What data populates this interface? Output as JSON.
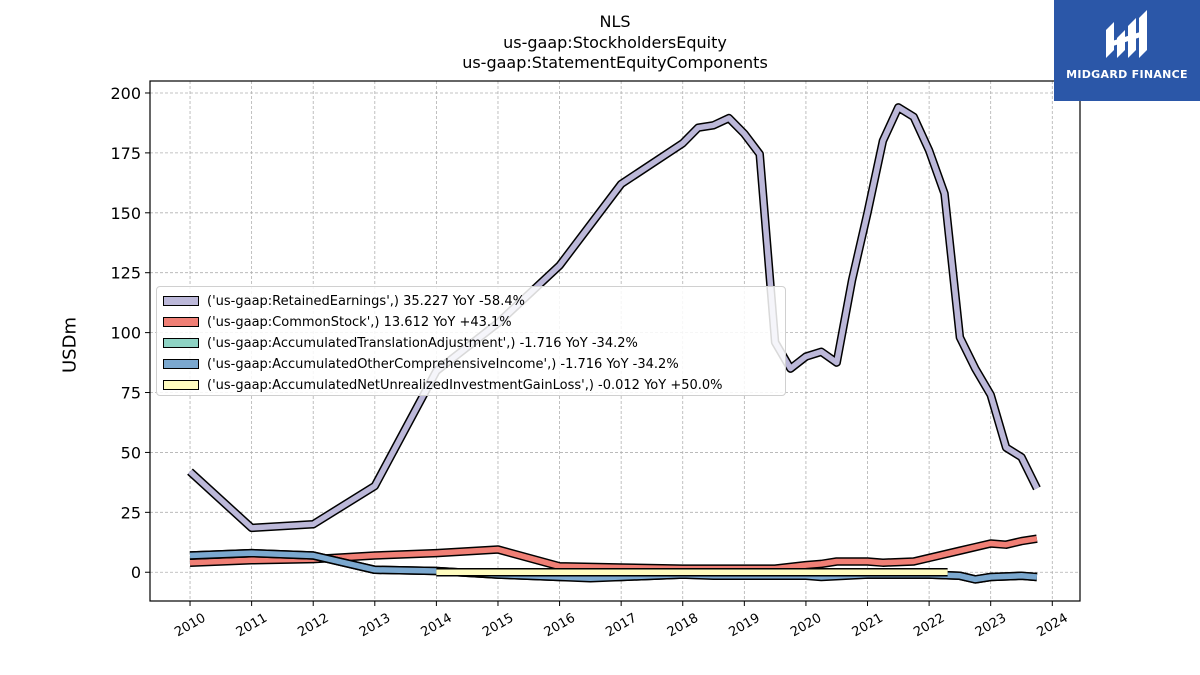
{
  "chart_data": {
    "type": "line",
    "title": [
      "NLS",
      "us-gaap:StockholdersEquity",
      "us-gaap:StatementEquityComponents"
    ],
    "ylabel": "USDm",
    "xlabel": "",
    "xlim": [
      2009.35,
      2024.45
    ],
    "ylim": [
      -12,
      205
    ],
    "yticks": [
      0,
      25,
      50,
      75,
      100,
      125,
      150,
      175,
      200
    ],
    "xticks": [
      2010,
      2011,
      2012,
      2013,
      2014,
      2015,
      2016,
      2017,
      2018,
      2019,
      2020,
      2021,
      2022,
      2023,
      2024
    ],
    "grid": true,
    "legend_position": "center-left",
    "series": [
      {
        "name": "('us-gaap:RetainedEarnings',) 35.227 YoY -58.4%",
        "color": "#bcb8d9",
        "points": [
          [
            2010.0,
            42
          ],
          [
            2011.0,
            18.5
          ],
          [
            2012.0,
            20
          ],
          [
            2013.0,
            36
          ],
          [
            2014.0,
            84
          ],
          [
            2015.0,
            104
          ],
          [
            2016.0,
            128
          ],
          [
            2017.0,
            162
          ],
          [
            2018.0,
            179
          ],
          [
            2018.25,
            185.5
          ],
          [
            2018.5,
            186.5
          ],
          [
            2018.75,
            189.5
          ],
          [
            2019.0,
            183
          ],
          [
            2019.25,
            174.5
          ],
          [
            2019.5,
            96
          ],
          [
            2019.75,
            85
          ],
          [
            2020.0,
            90
          ],
          [
            2020.25,
            92
          ],
          [
            2020.5,
            87.5
          ],
          [
            2020.75,
            122
          ],
          [
            2021.0,
            150
          ],
          [
            2021.25,
            180
          ],
          [
            2021.5,
            194
          ],
          [
            2021.75,
            190
          ],
          [
            2022.0,
            176
          ],
          [
            2022.25,
            158
          ],
          [
            2022.5,
            98
          ],
          [
            2022.75,
            85
          ],
          [
            2023.0,
            74
          ],
          [
            2023.25,
            52
          ],
          [
            2023.5,
            48
          ],
          [
            2023.75,
            35
          ]
        ]
      },
      {
        "name": "('us-gaap:CommonStock',) 13.612 YoY +43.1%",
        "color": "#f07f75",
        "points": [
          [
            2010.0,
            4
          ],
          [
            2011.0,
            5
          ],
          [
            2012.0,
            5.5
          ],
          [
            2013.0,
            7
          ],
          [
            2014.0,
            8
          ],
          [
            2015.0,
            9.5
          ],
          [
            2016.0,
            2.5
          ],
          [
            2017.0,
            2
          ],
          [
            2018.0,
            1.5
          ],
          [
            2018.5,
            1.5
          ],
          [
            2019.0,
            1.5
          ],
          [
            2019.5,
            1.5
          ],
          [
            2020.0,
            3
          ],
          [
            2020.25,
            3.5
          ],
          [
            2020.5,
            4.5
          ],
          [
            2021.0,
            4.5
          ],
          [
            2021.25,
            4
          ],
          [
            2021.75,
            4.5
          ],
          [
            2022.0,
            6
          ],
          [
            2022.5,
            9
          ],
          [
            2022.75,
            10.5
          ],
          [
            2023.0,
            12
          ],
          [
            2023.25,
            11.5
          ],
          [
            2023.5,
            13
          ],
          [
            2023.75,
            14
          ]
        ]
      },
      {
        "name": "('us-gaap:AccumulatedTranslationAdjustment',) -1.716 YoY -34.2%",
        "color": "#8ed3c4",
        "points": [
          [
            2010.0,
            7
          ],
          [
            2011.0,
            8
          ],
          [
            2012.0,
            7
          ],
          [
            2013.0,
            1
          ],
          [
            2014.0,
            0.5
          ],
          [
            2015.0,
            -1
          ],
          [
            2016.0,
            -2
          ],
          [
            2017.0,
            -2
          ],
          [
            2018.0,
            -1
          ],
          [
            2019.0,
            -1.5
          ],
          [
            2020.0,
            -1.5
          ],
          [
            2021.0,
            -1
          ],
          [
            2022.0,
            -1
          ],
          [
            2022.5,
            -1.5
          ],
          [
            2022.75,
            -3
          ],
          [
            2023.0,
            -2
          ],
          [
            2023.5,
            -1.5
          ],
          [
            2023.75,
            -2
          ]
        ]
      },
      {
        "name": "('us-gaap:AccumulatedOtherComprehensiveIncome',) -1.716 YoY -34.2%",
        "color": "#7ba8cf",
        "points": [
          [
            2010.0,
            7
          ],
          [
            2011.0,
            8
          ],
          [
            2012.0,
            7
          ],
          [
            2013.0,
            1
          ],
          [
            2014.0,
            0.5
          ],
          [
            2015.0,
            -1
          ],
          [
            2016.0,
            -2
          ],
          [
            2016.5,
            -2.5
          ],
          [
            2017.0,
            -2
          ],
          [
            2018.0,
            -1
          ],
          [
            2018.5,
            -1.5
          ],
          [
            2019.0,
            -1.5
          ],
          [
            2020.0,
            -1.5
          ],
          [
            2020.25,
            -2
          ],
          [
            2021.0,
            -1
          ],
          [
            2022.0,
            -1
          ],
          [
            2022.5,
            -1.5
          ],
          [
            2022.75,
            -3
          ],
          [
            2023.0,
            -2
          ],
          [
            2023.5,
            -1.5
          ],
          [
            2023.75,
            -2
          ]
        ]
      },
      {
        "name": "('us-gaap:AccumulatedNetUnrealizedInvestmentGainLoss',) -0.012 YoY +50.0%",
        "color": "#fffcbf",
        "points": [
          [
            2014.0,
            0
          ],
          [
            2022.3,
            0
          ]
        ]
      }
    ]
  },
  "logo": {
    "text": "MIDGARD FINANCE",
    "background": "#2b57a8"
  }
}
